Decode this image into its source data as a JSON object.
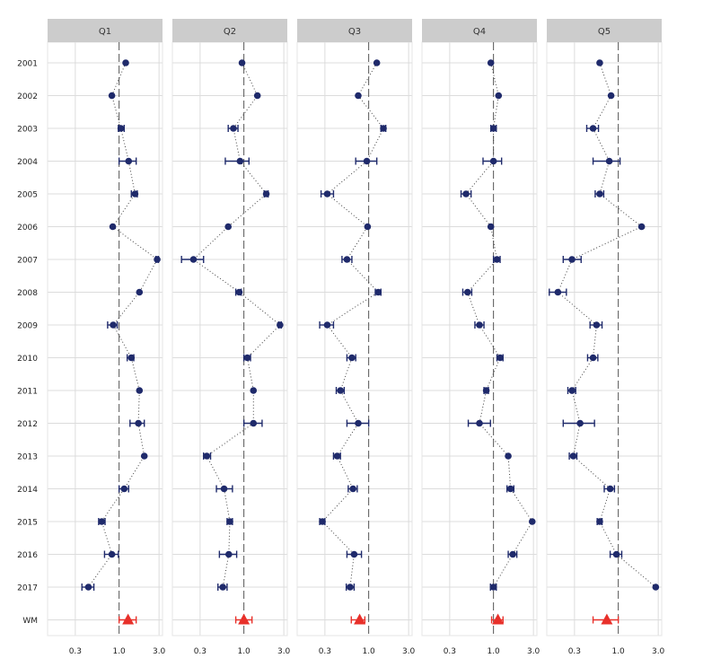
{
  "chart_data": {
    "type": "forest",
    "x_scale": "log",
    "xlim": [
      0.14,
      3.3
    ],
    "x_ticks": [
      0.3,
      1.0,
      3.0
    ],
    "x_tick_labels": [
      "0.3",
      "1.0",
      "3.0"
    ],
    "reference_line": 1.0,
    "grid": true,
    "rows": [
      "2001",
      "2002",
      "2003",
      "2004",
      "2005",
      "2006",
      "2007",
      "2008",
      "2009",
      "2010",
      "2011",
      "2012",
      "2013",
      "2014",
      "2015",
      "2016",
      "2017",
      "WM"
    ],
    "colors": {
      "point": "#1f2a6b",
      "wm": "#e8302a",
      "strip": "#cccccc"
    },
    "panels": [
      {
        "name": "Q1",
        "points": [
          {
            "est": 1.2,
            "lo": 1.2,
            "hi": 1.2
          },
          {
            "est": 0.82,
            "lo": 0.82,
            "hi": 0.82
          },
          {
            "est": 1.05,
            "lo": 0.98,
            "hi": 1.15
          },
          {
            "est": 1.3,
            "lo": 1.0,
            "hi": 1.6
          },
          {
            "est": 1.55,
            "lo": 1.4,
            "hi": 1.65
          },
          {
            "est": 0.84,
            "lo": 0.84,
            "hi": 0.84
          },
          {
            "est": 2.85,
            "lo": 2.75,
            "hi": 2.95
          },
          {
            "est": 1.75,
            "lo": 1.75,
            "hi": 1.75
          },
          {
            "est": 0.85,
            "lo": 0.73,
            "hi": 0.95
          },
          {
            "est": 1.4,
            "lo": 1.25,
            "hi": 1.5
          },
          {
            "est": 1.75,
            "lo": 1.75,
            "hi": 1.75
          },
          {
            "est": 1.7,
            "lo": 1.35,
            "hi": 2.0
          },
          {
            "est": 2.0,
            "lo": 2.0,
            "hi": 2.0
          },
          {
            "est": 1.15,
            "lo": 1.0,
            "hi": 1.3
          },
          {
            "est": 0.62,
            "lo": 0.57,
            "hi": 0.68
          },
          {
            "est": 0.82,
            "lo": 0.67,
            "hi": 0.98
          },
          {
            "est": 0.43,
            "lo": 0.36,
            "hi": 0.5
          }
        ],
        "wm": {
          "est": 1.28,
          "lo": 1.0,
          "hi": 1.6
        }
      },
      {
        "name": "Q2",
        "points": [
          {
            "est": 0.95,
            "lo": 0.95,
            "hi": 0.95
          },
          {
            "est": 1.45,
            "lo": 1.45,
            "hi": 1.45
          },
          {
            "est": 0.75,
            "lo": 0.65,
            "hi": 0.85
          },
          {
            "est": 0.9,
            "lo": 0.6,
            "hi": 1.15
          },
          {
            "est": 1.85,
            "lo": 1.75,
            "hi": 1.95
          },
          {
            "est": 0.65,
            "lo": 0.65,
            "hi": 0.65
          },
          {
            "est": 0.25,
            "lo": 0.18,
            "hi": 0.33
          },
          {
            "est": 0.88,
            "lo": 0.8,
            "hi": 0.93
          },
          {
            "est": 2.7,
            "lo": 2.6,
            "hi": 2.8
          },
          {
            "est": 1.1,
            "lo": 1.0,
            "hi": 1.2
          },
          {
            "est": 1.3,
            "lo": 1.3,
            "hi": 1.3
          },
          {
            "est": 1.3,
            "lo": 1.0,
            "hi": 1.65
          },
          {
            "est": 0.36,
            "lo": 0.33,
            "hi": 0.4
          },
          {
            "est": 0.58,
            "lo": 0.47,
            "hi": 0.73
          },
          {
            "est": 0.68,
            "lo": 0.63,
            "hi": 0.73
          },
          {
            "est": 0.66,
            "lo": 0.51,
            "hi": 0.82
          },
          {
            "est": 0.56,
            "lo": 0.49,
            "hi": 0.63
          }
        ],
        "wm": {
          "est": 1.0,
          "lo": 0.8,
          "hi": 1.25
        }
      },
      {
        "name": "Q3",
        "points": [
          {
            "est": 1.25,
            "lo": 1.25,
            "hi": 1.25
          },
          {
            "est": 0.75,
            "lo": 0.75,
            "hi": 0.75
          },
          {
            "est": 1.5,
            "lo": 1.4,
            "hi": 1.6
          },
          {
            "est": 0.95,
            "lo": 0.7,
            "hi": 1.25
          },
          {
            "est": 0.32,
            "lo": 0.27,
            "hi": 0.38
          },
          {
            "est": 0.97,
            "lo": 0.97,
            "hi": 0.97
          },
          {
            "est": 0.55,
            "lo": 0.48,
            "hi": 0.63
          },
          {
            "est": 1.3,
            "lo": 1.2,
            "hi": 1.4
          },
          {
            "est": 0.32,
            "lo": 0.26,
            "hi": 0.38
          },
          {
            "est": 0.63,
            "lo": 0.55,
            "hi": 0.7
          },
          {
            "est": 0.46,
            "lo": 0.41,
            "hi": 0.51
          },
          {
            "est": 0.75,
            "lo": 0.55,
            "hi": 1.0
          },
          {
            "est": 0.42,
            "lo": 0.38,
            "hi": 0.46
          },
          {
            "est": 0.65,
            "lo": 0.57,
            "hi": 0.73
          },
          {
            "est": 0.28,
            "lo": 0.26,
            "hi": 0.3
          },
          {
            "est": 0.67,
            "lo": 0.55,
            "hi": 0.82
          },
          {
            "est": 0.6,
            "lo": 0.54,
            "hi": 0.67
          }
        ],
        "wm": {
          "est": 0.78,
          "lo": 0.62,
          "hi": 0.9
        }
      },
      {
        "name": "Q4",
        "points": [
          {
            "est": 0.93,
            "lo": 0.93,
            "hi": 0.93
          },
          {
            "est": 1.15,
            "lo": 1.15,
            "hi": 1.15
          },
          {
            "est": 1.0,
            "lo": 0.93,
            "hi": 1.08
          },
          {
            "est": 1.0,
            "lo": 0.75,
            "hi": 1.25
          },
          {
            "est": 0.47,
            "lo": 0.41,
            "hi": 0.54
          },
          {
            "est": 0.93,
            "lo": 0.93,
            "hi": 0.93
          },
          {
            "est": 1.1,
            "lo": 1.0,
            "hi": 1.2
          },
          {
            "est": 0.49,
            "lo": 0.43,
            "hi": 0.55
          },
          {
            "est": 0.68,
            "lo": 0.6,
            "hi": 0.77
          },
          {
            "est": 1.2,
            "lo": 1.1,
            "hi": 1.3
          },
          {
            "est": 0.82,
            "lo": 0.77,
            "hi": 0.87
          },
          {
            "est": 0.68,
            "lo": 0.5,
            "hi": 0.92
          },
          {
            "est": 1.5,
            "lo": 1.5,
            "hi": 1.5
          },
          {
            "est": 1.6,
            "lo": 1.45,
            "hi": 1.75
          },
          {
            "est": 2.9,
            "lo": 2.9,
            "hi": 2.9
          },
          {
            "est": 1.7,
            "lo": 1.5,
            "hi": 1.9
          },
          {
            "est": 1.0,
            "lo": 0.92,
            "hi": 1.08
          }
        ],
        "wm": {
          "est": 1.13,
          "lo": 0.95,
          "hi": 1.3
        }
      },
      {
        "name": "Q5",
        "points": [
          {
            "est": 0.6,
            "lo": 0.6,
            "hi": 0.6
          },
          {
            "est": 0.82,
            "lo": 0.82,
            "hi": 0.82
          },
          {
            "est": 0.5,
            "lo": 0.42,
            "hi": 0.58
          },
          {
            "est": 0.78,
            "lo": 0.5,
            "hi": 1.05
          },
          {
            "est": 0.6,
            "lo": 0.53,
            "hi": 0.67
          },
          {
            "est": 1.9,
            "lo": 1.9,
            "hi": 1.9
          },
          {
            "est": 0.28,
            "lo": 0.22,
            "hi": 0.36
          },
          {
            "est": 0.19,
            "lo": 0.15,
            "hi": 0.24
          },
          {
            "est": 0.55,
            "lo": 0.46,
            "hi": 0.64
          },
          {
            "est": 0.5,
            "lo": 0.43,
            "hi": 0.57
          },
          {
            "est": 0.28,
            "lo": 0.25,
            "hi": 0.31
          },
          {
            "est": 0.35,
            "lo": 0.22,
            "hi": 0.52
          },
          {
            "est": 0.29,
            "lo": 0.26,
            "hi": 0.32
          },
          {
            "est": 0.8,
            "lo": 0.68,
            "hi": 0.9
          },
          {
            "est": 0.6,
            "lo": 0.56,
            "hi": 0.64
          },
          {
            "est": 0.95,
            "lo": 0.8,
            "hi": 1.1
          },
          {
            "est": 2.8,
            "lo": 2.8,
            "hi": 2.8
          }
        ],
        "wm": {
          "est": 0.73,
          "lo": 0.5,
          "hi": 1.0
        }
      }
    ]
  }
}
